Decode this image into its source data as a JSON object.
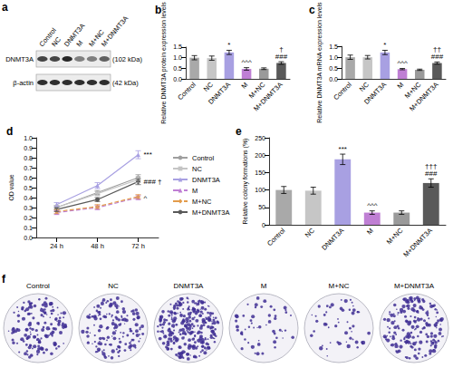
{
  "blot": {
    "title": "a",
    "lanes": [
      "Control",
      "NC",
      "DNMT3A",
      "M",
      "M+NC",
      "M+DNMT3A"
    ],
    "rows": [
      {
        "label": "DNMT3A",
        "size": "(102 kDa)"
      },
      {
        "label": "β-actin",
        "size": "(42 kDa)"
      }
    ]
  },
  "chart_data": [
    {
      "type": "bar",
      "title": "b",
      "y_label": "Relative DNMT3A protein expression levels",
      "categories": [
        "Control",
        "NC",
        "DNMT3A",
        "M",
        "M+NC",
        "M+DNMT3A"
      ],
      "values": [
        1.0,
        0.98,
        1.25,
        0.47,
        0.48,
        0.75
      ],
      "errors": [
        0.1,
        0.1,
        0.1,
        0.06,
        0.04,
        0.06
      ],
      "colors": [
        "#a9a9a9",
        "#c6c6c6",
        "#a8a0e2",
        "#bf7fd4",
        "#9a9a9a",
        "#595959"
      ],
      "ylim": [
        0,
        1.5
      ],
      "yticks": [
        {
          "value": 0,
          "label": "0.0"
        },
        0.5,
        {
          "value": 1,
          "label": "1.0"
        },
        1.5
      ],
      "grid": false,
      "annotations": [
        {
          "category": "DNMT3A",
          "text": [
            "*"
          ]
        },
        {
          "category": "M",
          "text": [
            "^^^"
          ]
        },
        {
          "category": "M+DNMT3A",
          "text": [
            "†",
            "###"
          ]
        }
      ]
    },
    {
      "type": "bar",
      "title": "c",
      "y_label": "Relative DNMT3A mRNA expression levels",
      "categories": [
        "Control",
        "NC",
        "DNMT3A",
        "M",
        "M+NC",
        "M+DNMT3A"
      ],
      "values": [
        1.0,
        1.0,
        1.22,
        0.45,
        0.42,
        0.73
      ],
      "errors": [
        0.1,
        0.08,
        0.1,
        0.03,
        0.03,
        0.05
      ],
      "colors": [
        "#a9a9a9",
        "#c6c6c6",
        "#a8a0e2",
        "#bf7fd4",
        "#9a9a9a",
        "#595959"
      ],
      "ylim": [
        0,
        1.5
      ],
      "yticks": [
        {
          "value": 0,
          "label": "0.0"
        },
        0.5,
        {
          "value": 1,
          "label": "1.0"
        },
        1.5
      ],
      "grid": false,
      "annotations": [
        {
          "category": "DNMT3A",
          "text": [
            "*"
          ]
        },
        {
          "category": "M",
          "text": [
            "^^^"
          ]
        },
        {
          "category": "M+DNMT3A",
          "text": [
            "††",
            "###"
          ]
        }
      ]
    },
    {
      "type": "line",
      "title": "d",
      "y_label": "OD value",
      "categories": [
        "24 h",
        "48 h",
        "72 h"
      ],
      "ylim": [
        0,
        1.0
      ],
      "yticks": [
        {
          "value": 0,
          "label": "0.0"
        },
        0.1,
        0.2,
        0.3,
        0.4,
        0.5,
        0.6,
        0.7,
        0.8,
        0.9,
        {
          "value": 1,
          "label": "1.0"
        }
      ],
      "grid": false,
      "legend": "right",
      "series": [
        {
          "name": "Control",
          "color": "#9e9e9e",
          "marker": "circle",
          "line_style": "solid",
          "values": [
            0.3,
            0.45,
            0.6
          ],
          "errors": [
            0.02,
            0.02,
            0.03
          ]
        },
        {
          "name": "NC",
          "color": "#c4c4c4",
          "marker": "rect",
          "line_style": "solid",
          "values": [
            0.3,
            0.44,
            0.58
          ],
          "errors": [
            0.02,
            0.02,
            0.03
          ]
        },
        {
          "name": "DNMT3A",
          "color": "#a8a0e2",
          "marker": "triangle",
          "line_style": "solid",
          "values": [
            0.33,
            0.52,
            0.83
          ],
          "errors": [
            0.02,
            0.03,
            0.04
          ]
        },
        {
          "name": "M",
          "color": "#bf7fd4",
          "marker": "triangle",
          "line_style": "dashed",
          "values": [
            0.25,
            0.3,
            0.4
          ],
          "errors": [
            0.02,
            0.02,
            0.02
          ]
        },
        {
          "name": "M+NC",
          "color": "#e39b4b",
          "marker": "diamond",
          "line_style": "dashed",
          "values": [
            0.26,
            0.31,
            0.41
          ],
          "errors": [
            0.02,
            0.02,
            0.02
          ]
        },
        {
          "name": "M+DNMT3A",
          "color": "#595959",
          "marker": "circle",
          "line_style": "solid",
          "values": [
            0.28,
            0.38,
            0.56
          ],
          "errors": [
            0.02,
            0.02,
            0.03
          ]
        }
      ],
      "annotations": [
        {
          "series": "DNMT3A",
          "category": "72 h",
          "text": [
            "***"
          ]
        },
        {
          "series": "M+DNMT3A",
          "category": "72 h",
          "text": [
            "###",
            "†"
          ]
        },
        {
          "series": "M",
          "category": "72 h",
          "text": [
            "^"
          ]
        }
      ]
    },
    {
      "type": "bar",
      "title": "e",
      "y_label": "Relative colony formations (%)",
      "categories": [
        "Control",
        "NC",
        "DNMT3A",
        "M",
        "M+NC",
        "M+DNMT3A"
      ],
      "values": [
        100,
        98,
        188,
        35,
        35,
        120
      ],
      "errors": [
        10,
        10,
        15,
        5,
        5,
        12
      ],
      "colors": [
        "#a9a9a9",
        "#c6c6c6",
        "#a8a0e2",
        "#bf7fd4",
        "#9a9a9a",
        "#595959"
      ],
      "ylim": [
        0,
        250
      ],
      "yticks": [
        0,
        50,
        100,
        150,
        200,
        250
      ],
      "grid": false,
      "annotations": [
        {
          "category": "DNMT3A",
          "text": [
            "***"
          ]
        },
        {
          "category": "M",
          "text": [
            "^^^"
          ]
        },
        {
          "category": "M+DNMT3A",
          "text": [
            "†††",
            "###"
          ]
        }
      ]
    }
  ],
  "colonies": {
    "title": "f",
    "labels": [
      "Control",
      "NC",
      "DNMT3A",
      "M",
      "M+NC",
      "M+DNMT3A"
    ]
  }
}
